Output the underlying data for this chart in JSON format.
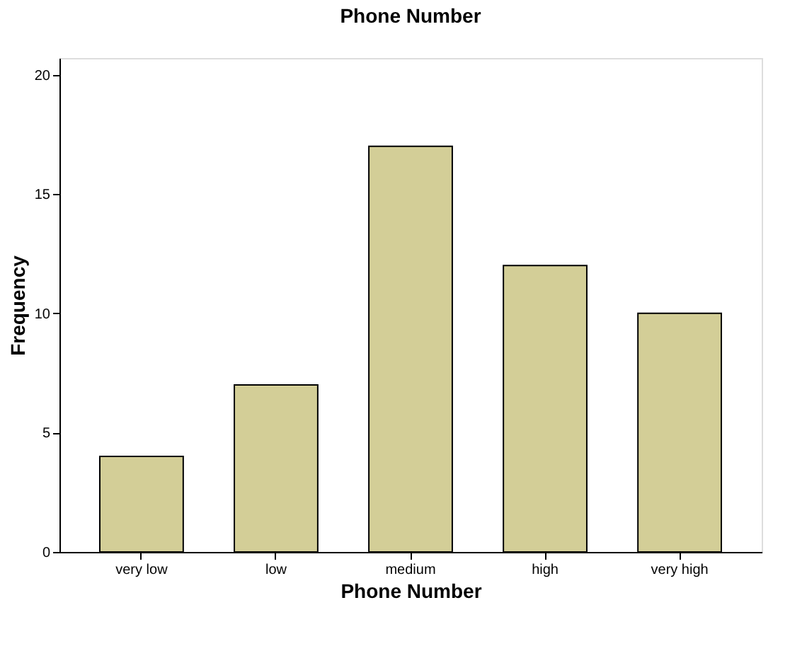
{
  "chart_data": {
    "type": "bar",
    "title": "Phone Number",
    "xlabel": "Phone Number",
    "ylabel": "Frequency",
    "categories": [
      "very low",
      "low",
      "medium",
      "high",
      "very high"
    ],
    "values": [
      4,
      7,
      17,
      12,
      10
    ],
    "color": "#d3ce97",
    "ylim": [
      0,
      20.7
    ],
    "yticks": [
      0,
      5,
      10,
      15,
      20
    ],
    "grid": false
  }
}
